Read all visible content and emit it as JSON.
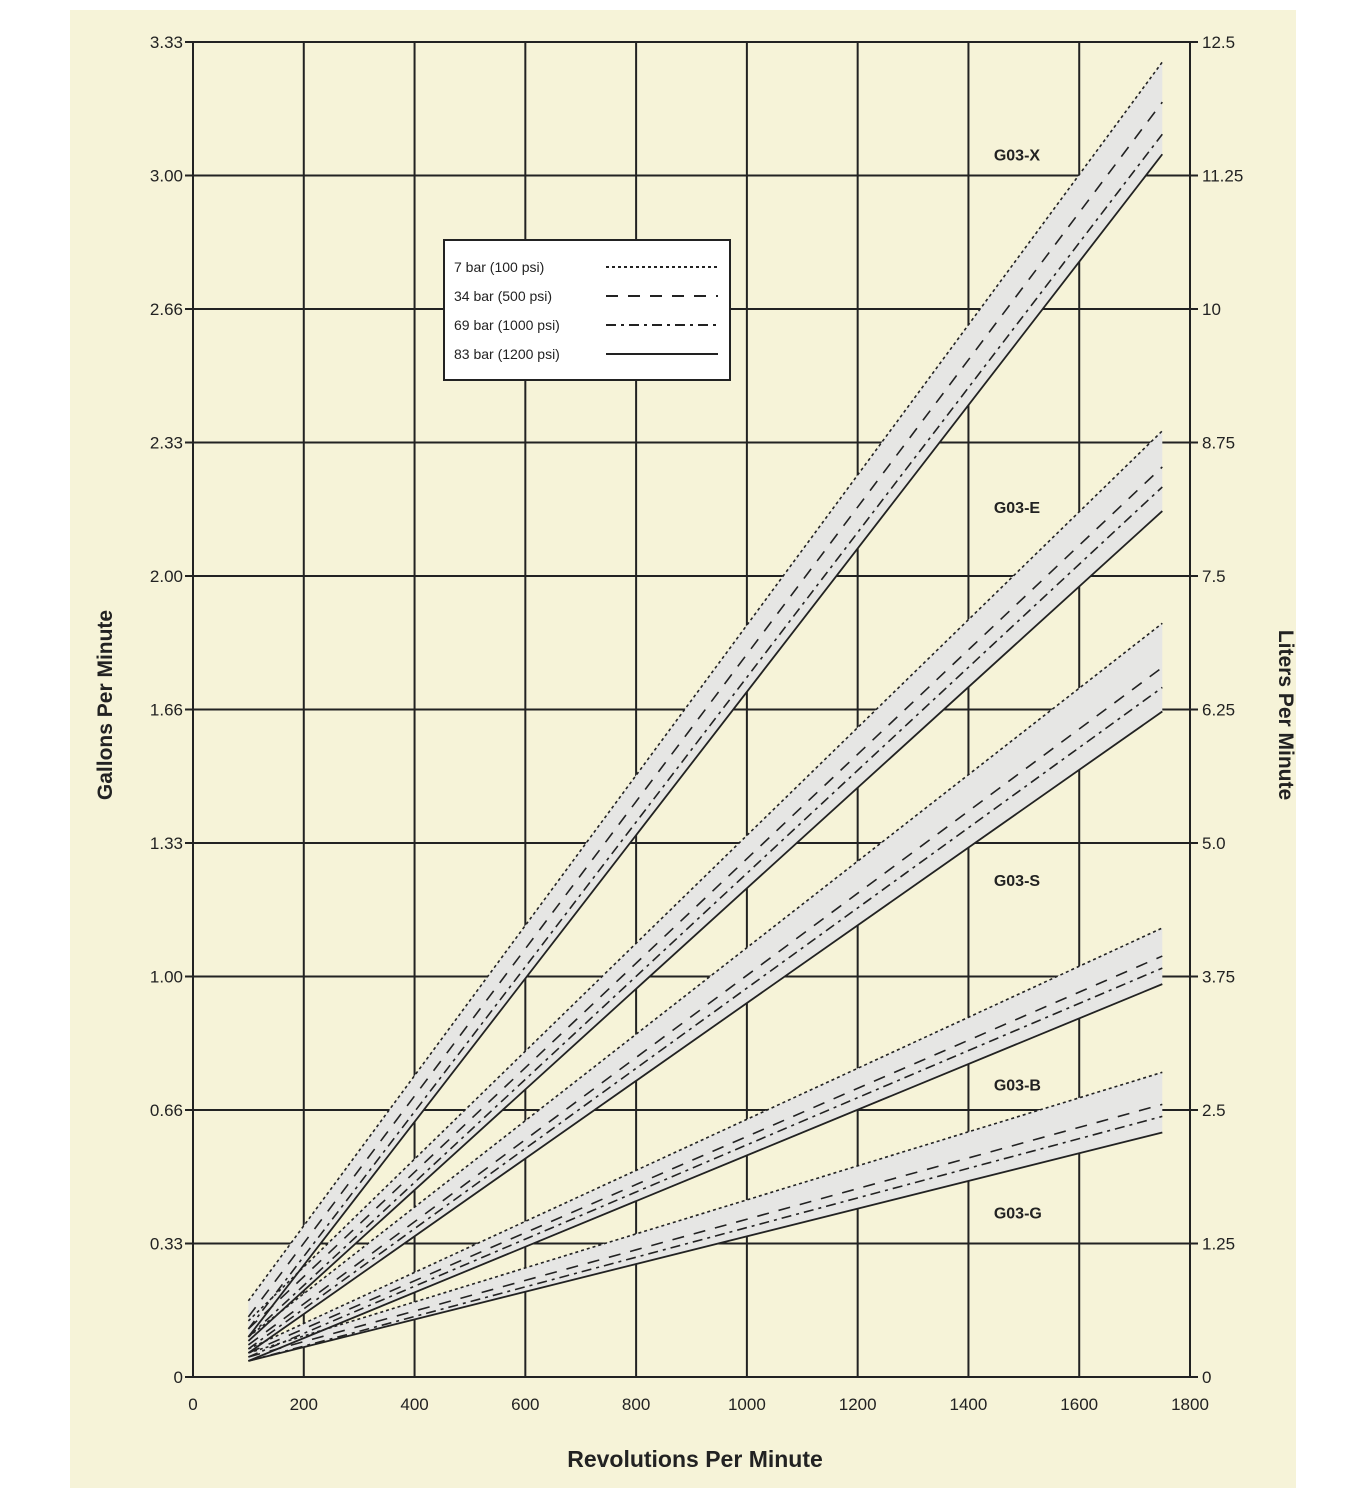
{
  "chart_data": {
    "type": "line",
    "xlabel": "Revolutions Per Minute",
    "ylabel": "Gallons Per Minute",
    "ylabel_right": "Liters Per Minute",
    "xlim": [
      0,
      1800
    ],
    "ylim": [
      0,
      3.33
    ],
    "ylim_right": [
      0,
      12.5
    ],
    "x_ticks": [
      "0",
      "200",
      "400",
      "600",
      "800",
      "1000",
      "1200",
      "1400",
      "1600",
      "1800"
    ],
    "y_ticks": [
      "0",
      "0.33",
      "0.66",
      "1.00",
      "1.33",
      "1.66",
      "2.00",
      "2.33",
      "2.66",
      "3.00",
      "3.33"
    ],
    "y_ticks_right": [
      "0",
      "1.25",
      "2.5",
      "3.75",
      "5.0",
      "6.25",
      "7.5",
      "8.75",
      "10",
      "11.25",
      "12.5"
    ],
    "grid": true,
    "legend_position": "top-center",
    "legend": [
      {
        "label": "7 bar (100 psi)",
        "style": "dotted"
      },
      {
        "label": "34 bar (500 psi)",
        "style": "dashed"
      },
      {
        "label": "69 bar (1000 psi)",
        "style": "dash-dot"
      },
      {
        "label": "83 bar (1200 psi)",
        "style": "solid"
      }
    ],
    "band_fill": "#e6e6e4",
    "models": [
      {
        "name": "G03-X",
        "x": [
          100,
          1750
        ],
        "series": [
          {
            "pressure": "7 bar (100 psi)",
            "y": [
              0.19,
              3.28
            ]
          },
          {
            "pressure": "34 bar (500 psi)",
            "y": [
              0.15,
              3.18
            ]
          },
          {
            "pressure": "69 bar (1000 psi)",
            "y": [
              0.12,
              3.1
            ]
          },
          {
            "pressure": "83 bar (1200 psi)",
            "y": [
              0.1,
              3.05
            ]
          }
        ]
      },
      {
        "name": "G03-E",
        "x": [
          100,
          1750
        ],
        "series": [
          {
            "pressure": "7 bar (100 psi)",
            "y": [
              0.14,
              2.36
            ]
          },
          {
            "pressure": "34 bar (500 psi)",
            "y": [
              0.12,
              2.27
            ]
          },
          {
            "pressure": "69 bar (1000 psi)",
            "y": [
              0.1,
              2.22
            ]
          },
          {
            "pressure": "83 bar (1200 psi)",
            "y": [
              0.09,
              2.16
            ]
          }
        ]
      },
      {
        "name": "G03-S",
        "x": [
          100,
          1750
        ],
        "series": [
          {
            "pressure": "7 bar (100 psi)",
            "y": [
              0.1,
              1.88
            ]
          },
          {
            "pressure": "34 bar (500 psi)",
            "y": [
              0.08,
              1.77
            ]
          },
          {
            "pressure": "69 bar (1000 psi)",
            "y": [
              0.07,
              1.72
            ]
          },
          {
            "pressure": "83 bar (1200 psi)",
            "y": [
              0.06,
              1.66
            ]
          }
        ]
      },
      {
        "name": "G03-B",
        "x": [
          100,
          1750
        ],
        "series": [
          {
            "pressure": "7 bar (100 psi)",
            "y": [
              0.07,
              1.12
            ]
          },
          {
            "pressure": "34 bar (500 psi)",
            "y": [
              0.06,
              1.05
            ]
          },
          {
            "pressure": "69 bar (1000 psi)",
            "y": [
              0.05,
              1.02
            ]
          },
          {
            "pressure": "83 bar (1200 psi)",
            "y": [
              0.04,
              0.98
            ]
          }
        ]
      },
      {
        "name": "G03-G",
        "x": [
          100,
          1750
        ],
        "series": [
          {
            "pressure": "7 bar (100 psi)",
            "y": [
              0.06,
              0.76
            ]
          },
          {
            "pressure": "34 bar (500 psi)",
            "y": [
              0.05,
              0.68
            ]
          },
          {
            "pressure": "69 bar (1000 psi)",
            "y": [
              0.04,
              0.65
            ]
          },
          {
            "pressure": "83 bar (1200 psi)",
            "y": [
              0.04,
              0.61
            ]
          }
        ]
      }
    ],
    "model_labels": [
      {
        "text": "G03-X",
        "x": 1500,
        "y": 3.05
      },
      {
        "text": "G03-E",
        "x": 1500,
        "y": 2.17
      },
      {
        "text": "G03-S",
        "x": 1500,
        "y": 1.24
      },
      {
        "text": "G03-B",
        "x": 1500,
        "y": 0.73
      },
      {
        "text": "G03-G",
        "x": 1500,
        "y": 0.41
      }
    ]
  }
}
